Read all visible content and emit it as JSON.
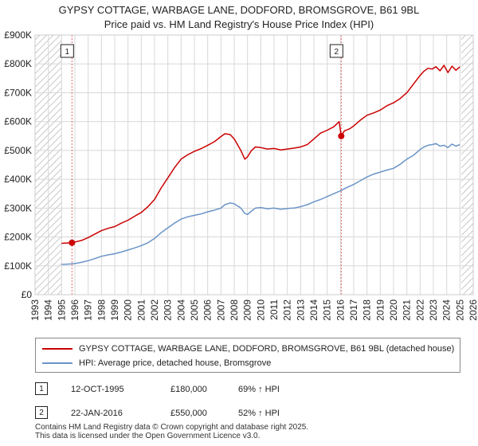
{
  "header": {
    "title_line1": "GYPSY COTTAGE, WARBAGE LANE, DODFORD, BROMSGROVE, B61 9BL",
    "title_line2": "Price paid vs. HM Land Registry's House Price Index (HPI)"
  },
  "colors": {
    "property": "#cc0000",
    "hpi": "#6b94c8",
    "grid": "#d8d8d8",
    "shade": "#e6e6e6"
  },
  "legend": {
    "property_label": "GYPSY COTTAGE, WARBAGE LANE, DODFORD, BROMSGROVE, B61 9BL (detached house)",
    "hpi_label": "HPI: Average price, detached house, Bromsgrove"
  },
  "sales": [
    {
      "num": "1",
      "date": "12-OCT-1995",
      "price": "£180,000",
      "hpi_change": "69% ↑ HPI"
    },
    {
      "num": "2",
      "date": "22-JAN-2016",
      "price": "£550,000",
      "hpi_change": "52% ↑ HPI"
    }
  ],
  "footer": {
    "line1": "Contains HM Land Registry data © Crown copyright and database right 2025.",
    "line2": "This data is licensed under the Open Government Licence v3.0."
  },
  "chart_data": {
    "type": "line",
    "xlim": [
      1993,
      2026
    ],
    "ylim": [
      0,
      900000
    ],
    "y_ticks": [
      0,
      100000,
      200000,
      300000,
      400000,
      500000,
      600000,
      700000,
      800000,
      900000
    ],
    "y_tick_labels": [
      "£0",
      "£100K",
      "£200K",
      "£300K",
      "£400K",
      "£500K",
      "£600K",
      "£700K",
      "£800K",
      "£900K"
    ],
    "x_ticks": [
      1993,
      1994,
      1995,
      1996,
      1997,
      1998,
      1999,
      2000,
      2001,
      2002,
      2003,
      2004,
      2005,
      2006,
      2007,
      2008,
      2009,
      2010,
      2011,
      2012,
      2013,
      2014,
      2015,
      2016,
      2017,
      2018,
      2019,
      2020,
      2021,
      2022,
      2023,
      2024,
      2025,
      2026
    ],
    "x_tick_labels": [
      "1993",
      "1994",
      "1995",
      "1996",
      "1997",
      "1998",
      "1999",
      "2000",
      "2001",
      "2002",
      "2003",
      "2004",
      "2005",
      "2006",
      "2007",
      "2008",
      "2009",
      "2010",
      "2011",
      "2012",
      "2013",
      "2014",
      "2015",
      "2016",
      "2017",
      "2018",
      "2019",
      "2020",
      "2021",
      "2022",
      "2023",
      "2024",
      "2025",
      "2026"
    ],
    "hatched_ranges": [
      [
        1993,
        1995.0
      ],
      [
        2025.1,
        2026
      ]
    ],
    "markers": [
      {
        "label": "1",
        "x": 1995.78,
        "y": 180000
      },
      {
        "label": "2",
        "x": 2016.06,
        "y": 550000
      }
    ],
    "series": [
      {
        "name": "GYPSY COTTAGE, WARBAGE LANE, DODFORD, BROMSGROVE, B61 9BL (detached house)",
        "x": [
          1995.0,
          1995.78,
          1996.5,
          1997.0,
          1997.5,
          1998.0,
          1998.5,
          1999.0,
          1999.5,
          2000.0,
          2000.5,
          2001.0,
          2001.5,
          2002.0,
          2002.5,
          2003.0,
          2003.5,
          2004.0,
          2004.5,
          2005.0,
          2005.5,
          2006.0,
          2006.5,
          2007.0,
          2007.3,
          2007.7,
          2008.0,
          2008.5,
          2008.8,
          2009.0,
          2009.3,
          2009.6,
          2010.0,
          2010.5,
          2011.0,
          2011.5,
          2012.0,
          2012.5,
          2013.0,
          2013.5,
          2014.0,
          2014.5,
          2015.0,
          2015.5,
          2015.9,
          2016.06,
          2016.3,
          2016.7,
          2017.0,
          2017.5,
          2018.0,
          2018.5,
          2019.0,
          2019.5,
          2020.0,
          2020.5,
          2021.0,
          2021.5,
          2022.0,
          2022.3,
          2022.6,
          2022.9,
          2023.2,
          2023.5,
          2023.8,
          2024.1,
          2024.4,
          2024.7,
          2025.0
        ],
        "values": [
          178000,
          180000,
          188000,
          198000,
          210000,
          222000,
          230000,
          236000,
          248000,
          258000,
          272000,
          285000,
          305000,
          330000,
          370000,
          405000,
          440000,
          470000,
          485000,
          497000,
          506000,
          518000,
          530000,
          548000,
          558000,
          555000,
          540000,
          500000,
          470000,
          478000,
          500000,
          512000,
          510000,
          505000,
          507000,
          502000,
          505000,
          508000,
          512000,
          520000,
          540000,
          560000,
          570000,
          582000,
          600000,
          550000,
          568000,
          575000,
          585000,
          605000,
          622000,
          630000,
          640000,
          655000,
          665000,
          680000,
          700000,
          730000,
          760000,
          775000,
          785000,
          782000,
          790000,
          776000,
          795000,
          770000,
          792000,
          778000,
          790000
        ]
      },
      {
        "name": "HPI: Average price, detached house, Bromsgrove",
        "x": [
          1995.0,
          1995.5,
          1996.0,
          1996.5,
          1997.0,
          1997.5,
          1998.0,
          1998.5,
          1999.0,
          1999.5,
          2000.0,
          2000.5,
          2001.0,
          2001.5,
          2002.0,
          2002.5,
          2003.0,
          2003.5,
          2004.0,
          2004.5,
          2005.0,
          2005.5,
          2006.0,
          2006.5,
          2007.0,
          2007.3,
          2007.7,
          2008.0,
          2008.5,
          2008.8,
          2009.0,
          2009.3,
          2009.6,
          2010.0,
          2010.5,
          2011.0,
          2011.5,
          2012.0,
          2012.5,
          2013.0,
          2013.5,
          2014.0,
          2014.5,
          2015.0,
          2015.5,
          2016.0,
          2016.5,
          2017.0,
          2017.5,
          2018.0,
          2018.5,
          2019.0,
          2019.5,
          2020.0,
          2020.5,
          2021.0,
          2021.5,
          2022.0,
          2022.3,
          2022.6,
          2022.9,
          2023.2,
          2023.5,
          2023.8,
          2024.1,
          2024.4,
          2024.7,
          2025.0
        ],
        "values": [
          105000,
          106000,
          108000,
          112000,
          118000,
          125000,
          133000,
          138000,
          142000,
          148000,
          155000,
          162000,
          170000,
          180000,
          195000,
          215000,
          232000,
          248000,
          262000,
          270000,
          275000,
          280000,
          287000,
          293000,
          300000,
          312000,
          318000,
          315000,
          300000,
          282000,
          278000,
          290000,
          300000,
          302000,
          298000,
          300000,
          296000,
          299000,
          300000,
          305000,
          312000,
          322000,
          330000,
          340000,
          350000,
          360000,
          372000,
          382000,
          395000,
          408000,
          418000,
          425000,
          432000,
          438000,
          452000,
          470000,
          483000,
          503000,
          512000,
          518000,
          520000,
          524000,
          515000,
          518000,
          510000,
          522000,
          515000,
          520000
        ]
      }
    ]
  }
}
